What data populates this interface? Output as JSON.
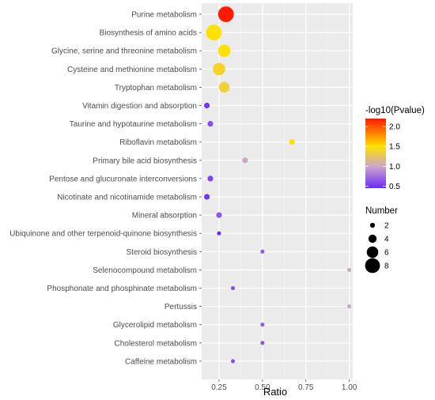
{
  "chart_data": {
    "type": "scatter",
    "xlabel": "Ratio",
    "x_ticks": [
      "0.25",
      "0.50",
      "0.75",
      "1.00"
    ],
    "x_tick_values": [
      0.25,
      0.5,
      0.75,
      1.0
    ],
    "xlim": [
      0.15,
      1.02
    ],
    "grid": true,
    "legend_placement": "right",
    "color_legend": {
      "title": "-log10(Pvalue)",
      "ticks": [
        "2.0",
        "1.5",
        "1.0",
        "0.5"
      ],
      "tick_values": [
        2.0,
        1.5,
        1.0,
        0.5
      ],
      "range": [
        0.45,
        2.2
      ],
      "colors": [
        "#6a2cf5",
        "#c9a3cf",
        "#ffe000",
        "#ff1a00"
      ]
    },
    "size_legend": {
      "title": "Number",
      "labels": [
        "2",
        "4",
        "6",
        "8"
      ],
      "values": [
        2,
        4,
        6,
        8
      ]
    },
    "points": [
      {
        "label": "Purine metabolism",
        "ratio": 0.29,
        "pvalue": 2.2,
        "number": 8
      },
      {
        "label": "Biosynthesis of amino acids",
        "ratio": 0.22,
        "pvalue": 1.5,
        "number": 8
      },
      {
        "label": "Glycine, serine and threonine metabolism",
        "ratio": 0.28,
        "pvalue": 1.5,
        "number": 6
      },
      {
        "label": "Cysteine and methionine metabolism",
        "ratio": 0.25,
        "pvalue": 1.4,
        "number": 6
      },
      {
        "label": "Tryptophan metabolism",
        "ratio": 0.28,
        "pvalue": 1.35,
        "number": 5
      },
      {
        "label": "Vitamin digestion and absorption",
        "ratio": 0.18,
        "pvalue": 0.5,
        "number": 2
      },
      {
        "label": "Taurine and hypotaurine metabolism",
        "ratio": 0.2,
        "pvalue": 0.6,
        "number": 2
      },
      {
        "label": "Riboflavin metabolism",
        "ratio": 0.67,
        "pvalue": 1.5,
        "number": 2
      },
      {
        "label": "Primary bile acid biosynthesis",
        "ratio": 0.4,
        "pvalue": 1.0,
        "number": 2
      },
      {
        "label": "Pentose and glucuronate interconversions",
        "ratio": 0.2,
        "pvalue": 0.55,
        "number": 2
      },
      {
        "label": "Nicotinate and nicotinamide metabolism",
        "ratio": 0.18,
        "pvalue": 0.5,
        "number": 2
      },
      {
        "label": "Mineral absorption",
        "ratio": 0.25,
        "pvalue": 0.65,
        "number": 2
      },
      {
        "label": "Ubiquinone and other terpenoid-quinone biosynthesis",
        "ratio": 0.25,
        "pvalue": 0.45,
        "number": 1
      },
      {
        "label": "Steroid biosynthesis",
        "ratio": 0.5,
        "pvalue": 0.65,
        "number": 1
      },
      {
        "label": "Selenocompound metabolism",
        "ratio": 1.0,
        "pvalue": 1.0,
        "number": 1
      },
      {
        "label": "Phosphonate and phosphinate metabolism",
        "ratio": 0.33,
        "pvalue": 0.6,
        "number": 1
      },
      {
        "label": "Pertussis",
        "ratio": 1.0,
        "pvalue": 1.0,
        "number": 1
      },
      {
        "label": "Glycerolipid metabolism",
        "ratio": 0.5,
        "pvalue": 0.65,
        "number": 1
      },
      {
        "label": "Cholesterol metabolism",
        "ratio": 0.5,
        "pvalue": 0.65,
        "number": 1
      },
      {
        "label": "Caffeine metabolism",
        "ratio": 0.33,
        "pvalue": 0.6,
        "number": 1
      }
    ]
  }
}
